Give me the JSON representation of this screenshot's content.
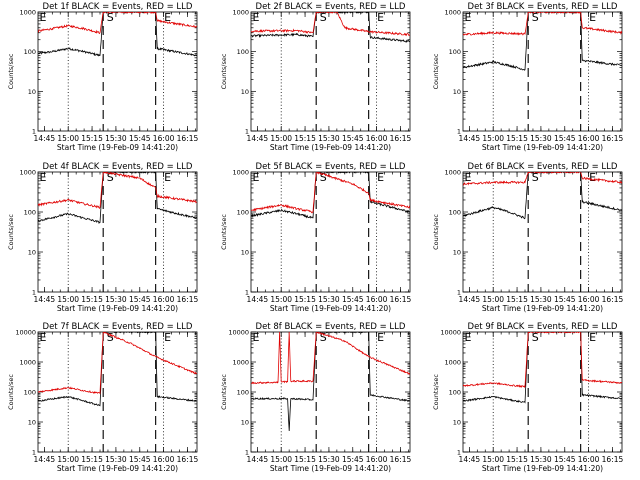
{
  "chart_data": [
    {
      "type": "line",
      "title": "Det 1f BLACK = Events, RED = LLD",
      "xlabel": "Start Time (19-Feb-09 14:41:20)",
      "ylabel": "Counts/sec",
      "yscale": "log",
      "ylim": [
        1,
        1000
      ],
      "xlim": [
        "14:41",
        "16:21"
      ],
      "x_ticks": [
        "14:45",
        "15:00",
        "15:15",
        "15:30",
        "15:45",
        "16:00",
        "16:15"
      ],
      "y_ticks": [
        "1",
        "10",
        "100",
        "1000"
      ],
      "markers": [
        "E",
        "S",
        "E"
      ],
      "vlines": {
        "dotted": [
          "15:00",
          "16:00"
        ],
        "dashed": [
          "15:22",
          "15:55"
        ]
      },
      "series": [
        {
          "name": "BLACK = Events",
          "color": "#000000",
          "points": [
            [
              "14:41",
              90
            ],
            [
              "14:50",
              100
            ],
            [
              "15:00",
              120
            ],
            [
              "15:10",
              100
            ],
            [
              "15:20",
              80
            ],
            [
              "15:22",
              1000
            ],
            [
              "15:55",
              1000
            ],
            [
              "15:56",
              120
            ],
            [
              "16:21",
              80
            ]
          ]
        },
        {
          "name": "RED = LLD",
          "color": "#e00000",
          "points": [
            [
              "14:41",
              330
            ],
            [
              "14:50",
              380
            ],
            [
              "15:00",
              450
            ],
            [
              "15:10",
              380
            ],
            [
              "15:20",
              300
            ],
            [
              "15:22",
              1000
            ],
            [
              "15:55",
              1000
            ],
            [
              "15:56",
              600
            ],
            [
              "16:21",
              420
            ]
          ]
        }
      ]
    },
    {
      "type": "line",
      "title": "Det 2f BLACK = Events, RED = LLD",
      "xlabel": "Start Time (19-Feb-09 14:41:20)",
      "ylabel": "Counts/sec",
      "yscale": "log",
      "ylim": [
        1,
        1000
      ],
      "xlim": [
        "14:41",
        "16:21"
      ],
      "x_ticks": [
        "14:45",
        "15:00",
        "15:15",
        "15:30",
        "15:45",
        "16:00",
        "16:15"
      ],
      "y_ticks": [
        "1",
        "10",
        "100",
        "1000"
      ],
      "markers": [
        "E",
        "S",
        "E"
      ],
      "vlines": {
        "dotted": [
          "15:00",
          "16:00"
        ],
        "dashed": [
          "15:22",
          "15:55"
        ]
      },
      "series": [
        {
          "name": "BLACK = Events",
          "color": "#000000",
          "points": [
            [
              "14:41",
              250
            ],
            [
              "15:10",
              270
            ],
            [
              "15:20",
              240
            ],
            [
              "15:22",
              1000
            ],
            [
              "15:55",
              1000
            ],
            [
              "15:56",
              230
            ],
            [
              "16:21",
              180
            ]
          ]
        },
        {
          "name": "RED = LLD",
          "color": "#e00000",
          "points": [
            [
              "14:41",
              330
            ],
            [
              "15:10",
              340
            ],
            [
              "15:20",
              300
            ],
            [
              "15:22",
              1000
            ],
            [
              "15:35",
              1000
            ],
            [
              "15:40",
              400
            ],
            [
              "15:55",
              320
            ],
            [
              "16:21",
              270
            ]
          ]
        }
      ]
    },
    {
      "type": "line",
      "title": "Det 3f BLACK = Events, RED = LLD",
      "xlabel": "Start Time (19-Feb-09 14:41:20)",
      "ylabel": "Counts/sec",
      "yscale": "log",
      "ylim": [
        1,
        1000
      ],
      "xlim": [
        "14:41",
        "16:21"
      ],
      "x_ticks": [
        "14:45",
        "15:00",
        "15:15",
        "15:30",
        "15:45",
        "16:00",
        "16:15"
      ],
      "y_ticks": [
        "1",
        "10",
        "100",
        "1000"
      ],
      "markers": [
        "E",
        "S",
        "E"
      ],
      "vlines": {
        "dotted": [
          "15:00",
          "16:00"
        ],
        "dashed": [
          "15:22",
          "15:55"
        ]
      },
      "series": [
        {
          "name": "BLACK = Events",
          "color": "#000000",
          "points": [
            [
              "14:41",
              40
            ],
            [
              "15:00",
              55
            ],
            [
              "15:10",
              45
            ],
            [
              "15:20",
              35
            ],
            [
              "15:22",
              1000
            ],
            [
              "15:55",
              1000
            ],
            [
              "15:56",
              60
            ],
            [
              "16:21",
              45
            ]
          ]
        },
        {
          "name": "RED = LLD",
          "color": "#e00000",
          "points": [
            [
              "14:41",
              270
            ],
            [
              "15:00",
              300
            ],
            [
              "15:20",
              280
            ],
            [
              "15:22",
              1000
            ],
            [
              "15:55",
              1000
            ],
            [
              "15:56",
              400
            ],
            [
              "16:21",
              300
            ]
          ]
        }
      ]
    },
    {
      "type": "line",
      "title": "Det 4f BLACK = Events, RED = LLD",
      "xlabel": "Start Time (19-Feb-09 14:41:20)",
      "ylabel": "Counts/sec",
      "yscale": "log",
      "ylim": [
        1,
        1000
      ],
      "xlim": [
        "14:41",
        "16:21"
      ],
      "x_ticks": [
        "14:45",
        "15:00",
        "15:15",
        "15:30",
        "15:45",
        "16:00",
        "16:15"
      ],
      "y_ticks": [
        "1",
        "10",
        "100",
        "1000"
      ],
      "markers": [
        "E",
        "S",
        "E"
      ],
      "vlines": {
        "dotted": [
          "15:00",
          "16:00"
        ],
        "dashed": [
          "15:22",
          "15:55"
        ]
      },
      "series": [
        {
          "name": "BLACK = Events",
          "color": "#000000",
          "points": [
            [
              "14:41",
              60
            ],
            [
              "15:00",
              90
            ],
            [
              "15:10",
              70
            ],
            [
              "15:20",
              55
            ],
            [
              "15:22",
              1000
            ],
            [
              "15:55",
              1000
            ],
            [
              "15:56",
              120
            ],
            [
              "16:21",
              70
            ]
          ]
        },
        {
          "name": "RED = LLD",
          "color": "#e00000",
          "points": [
            [
              "14:41",
              150
            ],
            [
              "15:00",
              200
            ],
            [
              "15:10",
              160
            ],
            [
              "15:20",
              130
            ],
            [
              "15:22",
              1000
            ],
            [
              "15:45",
              700
            ],
            [
              "15:55",
              400
            ],
            [
              "15:56",
              250
            ],
            [
              "16:21",
              180
            ]
          ]
        }
      ]
    },
    {
      "type": "line",
      "title": "Det 5f BLACK = Events, RED = LLD",
      "xlabel": "Start Time (19-Feb-09 14:41:20)",
      "ylabel": "Counts/sec",
      "yscale": "log",
      "ylim": [
        1,
        1000
      ],
      "xlim": [
        "14:41",
        "16:21"
      ],
      "x_ticks": [
        "14:45",
        "15:00",
        "15:15",
        "15:30",
        "15:45",
        "16:00",
        "16:15"
      ],
      "y_ticks": [
        "1",
        "10",
        "100",
        "1000"
      ],
      "markers": [
        "E",
        "S",
        "E"
      ],
      "vlines": {
        "dotted": [
          "15:00",
          "16:00"
        ],
        "dashed": [
          "15:22",
          "15:55"
        ]
      },
      "series": [
        {
          "name": "BLACK = Events",
          "color": "#000000",
          "points": [
            [
              "14:41",
              80
            ],
            [
              "15:00",
              110
            ],
            [
              "15:10",
              90
            ],
            [
              "15:20",
              70
            ],
            [
              "15:22",
              1000
            ],
            [
              "15:55",
              1000
            ],
            [
              "15:56",
              180
            ],
            [
              "16:21",
              100
            ]
          ]
        },
        {
          "name": "RED = LLD",
          "color": "#e00000",
          "points": [
            [
              "14:41",
              110
            ],
            [
              "15:00",
              150
            ],
            [
              "15:10",
              120
            ],
            [
              "15:20",
              100
            ],
            [
              "15:22",
              1000
            ],
            [
              "15:45",
              500
            ],
            [
              "15:55",
              300
            ],
            [
              "15:56",
              200
            ],
            [
              "16:21",
              130
            ]
          ]
        }
      ]
    },
    {
      "type": "line",
      "title": "Det 6f BLACK = Events, RED = LLD",
      "xlabel": "Start Time (19-Feb-09 14:41:20)",
      "ylabel": "Counts/sec",
      "yscale": "log",
      "ylim": [
        1,
        1000
      ],
      "xlim": [
        "14:41",
        "16:21"
      ],
      "x_ticks": [
        "14:45",
        "15:00",
        "15:15",
        "15:30",
        "15:45",
        "16:00",
        "16:15"
      ],
      "y_ticks": [
        "1",
        "10",
        "100",
        "1000"
      ],
      "markers": [
        "E",
        "S",
        "E"
      ],
      "vlines": {
        "dotted": [
          "15:00",
          "16:00"
        ],
        "dashed": [
          "15:22",
          "15:55"
        ]
      },
      "series": [
        {
          "name": "BLACK = Events",
          "color": "#000000",
          "points": [
            [
              "14:41",
              80
            ],
            [
              "15:00",
              130
            ],
            [
              "15:10",
              100
            ],
            [
              "15:20",
              70
            ],
            [
              "15:22",
              1000
            ],
            [
              "15:55",
              1000
            ],
            [
              "15:56",
              180
            ],
            [
              "16:21",
              110
            ]
          ]
        },
        {
          "name": "RED = LLD",
          "color": "#e00000",
          "points": [
            [
              "14:41",
              500
            ],
            [
              "15:00",
              550
            ],
            [
              "15:20",
              550
            ],
            [
              "15:22",
              1000
            ],
            [
              "15:55",
              1000
            ],
            [
              "15:56",
              700
            ],
            [
              "16:21",
              550
            ]
          ]
        }
      ]
    },
    {
      "type": "line",
      "title": "Det 7f BLACK = Events, RED = LLD",
      "xlabel": "Start Time (19-Feb-09 14:41:20)",
      "ylabel": "Counts/sec",
      "yscale": "log",
      "ylim": [
        1,
        10000
      ],
      "xlim": [
        "14:41",
        "16:21"
      ],
      "x_ticks": [
        "14:45",
        "15:00",
        "15:15",
        "15:30",
        "15:45",
        "16:00",
        "16:15"
      ],
      "y_ticks": [
        "1",
        "10",
        "100",
        "1000",
        "10000"
      ],
      "markers": [
        "E",
        "S",
        "E"
      ],
      "vlines": {
        "dotted": [
          "15:00",
          "16:00"
        ],
        "dashed": [
          "15:22",
          "15:55"
        ]
      },
      "series": [
        {
          "name": "BLACK = Events",
          "color": "#000000",
          "points": [
            [
              "14:41",
              50
            ],
            [
              "15:00",
              70
            ],
            [
              "15:10",
              50
            ],
            [
              "15:20",
              35
            ],
            [
              "15:22",
              10000
            ],
            [
              "15:55",
              10000
            ],
            [
              "15:56",
              70
            ],
            [
              "16:21",
              50
            ]
          ]
        },
        {
          "name": "RED = LLD",
          "color": "#e00000",
          "points": [
            [
              "14:41",
              100
            ],
            [
              "15:00",
              140
            ],
            [
              "15:10",
              110
            ],
            [
              "15:20",
              90
            ],
            [
              "15:22",
              10000
            ],
            [
              "15:40",
              4000
            ],
            [
              "15:55",
              1500
            ],
            [
              "16:21",
              400
            ]
          ]
        }
      ]
    },
    {
      "type": "line",
      "title": "Det 8f BLACK = Events, RED = LLD",
      "xlabel": "Start Time (19-Feb-09 14:41:20)",
      "ylabel": "Counts/sec",
      "yscale": "log",
      "ylim": [
        1,
        10000
      ],
      "xlim": [
        "14:41",
        "16:21"
      ],
      "x_ticks": [
        "14:45",
        "15:00",
        "15:15",
        "15:30",
        "15:45",
        "16:00",
        "16:15"
      ],
      "y_ticks": [
        "1",
        "10",
        "100",
        "1000",
        "10000"
      ],
      "markers": [
        "E",
        "S",
        "E"
      ],
      "vlines": {
        "dotted": [
          "15:00",
          "16:00"
        ],
        "dashed": [
          "15:22",
          "15:55"
        ]
      },
      "series": [
        {
          "name": "BLACK = Events",
          "color": "#000000",
          "points": [
            [
              "14:41",
              60
            ],
            [
              "15:04",
              60
            ],
            [
              "15:05",
              5
            ],
            [
              "15:06",
              60
            ],
            [
              "15:20",
              55
            ],
            [
              "15:22",
              10000
            ],
            [
              "15:55",
              10000
            ],
            [
              "15:56",
              80
            ],
            [
              "16:21",
              50
            ]
          ]
        },
        {
          "name": "RED = LLD",
          "color": "#e00000",
          "points": [
            [
              "14:41",
              200
            ],
            [
              "14:58",
              210
            ],
            [
              "14:59",
              10000
            ],
            [
              "15:00",
              220
            ],
            [
              "15:04",
              220
            ],
            [
              "15:05",
              10000
            ],
            [
              "15:06",
              230
            ],
            [
              "15:20",
              230
            ],
            [
              "15:22",
              10000
            ],
            [
              "15:40",
              5000
            ],
            [
              "15:55",
              1500
            ],
            [
              "16:21",
              400
            ]
          ]
        }
      ]
    },
    {
      "type": "line",
      "title": "Det 9f BLACK = Events, RED = LLD",
      "xlabel": "Start Time (19-Feb-09 14:41:20)",
      "ylabel": "Counts/sec",
      "yscale": "log",
      "ylim": [
        1,
        10000
      ],
      "xlim": [
        "14:41",
        "16:21"
      ],
      "x_ticks": [
        "14:45",
        "15:00",
        "15:15",
        "15:30",
        "15:45",
        "16:00",
        "16:15"
      ],
      "y_ticks": [
        "1",
        "10",
        "100",
        "1000",
        "10000"
      ],
      "markers": [
        "E",
        "S",
        "E"
      ],
      "vlines": {
        "dotted": [
          "15:00",
          "16:00"
        ],
        "dashed": [
          "15:22",
          "15:55"
        ]
      },
      "series": [
        {
          "name": "BLACK = Events",
          "color": "#000000",
          "points": [
            [
              "14:41",
              50
            ],
            [
              "15:00",
              70
            ],
            [
              "15:10",
              55
            ],
            [
              "15:20",
              45
            ],
            [
              "15:22",
              10000
            ],
            [
              "15:55",
              10000
            ],
            [
              "15:56",
              80
            ],
            [
              "16:21",
              60
            ]
          ]
        },
        {
          "name": "RED = LLD",
          "color": "#e00000",
          "points": [
            [
              "14:41",
              160
            ],
            [
              "15:00",
              200
            ],
            [
              "15:10",
              170
            ],
            [
              "15:20",
              150
            ],
            [
              "15:22",
              10000
            ],
            [
              "15:55",
              10000
            ],
            [
              "15:56",
              250
            ],
            [
              "16:21",
              200
            ]
          ]
        }
      ]
    }
  ]
}
